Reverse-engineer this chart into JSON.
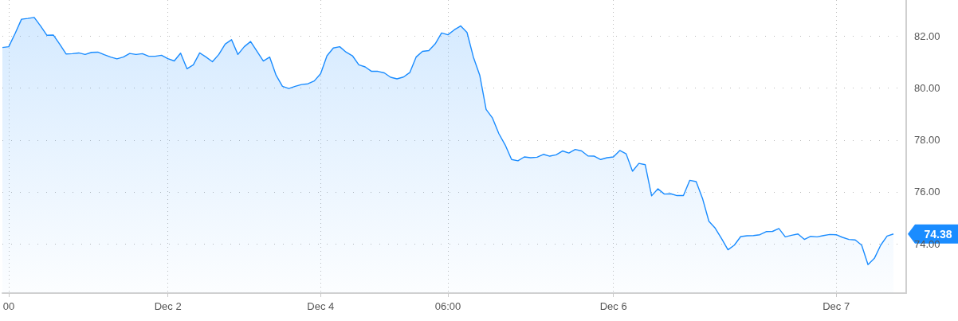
{
  "chart_data": {
    "type": "area",
    "categories": [
      null,
      "00",
      null,
      null,
      null,
      null,
      null,
      null,
      null,
      null,
      null,
      null,
      null,
      null,
      null,
      null,
      null,
      null,
      null,
      null,
      null,
      null,
      null,
      null,
      null,
      null,
      "Dec 2",
      null,
      null,
      null,
      null,
      null,
      null,
      null,
      null,
      null,
      null,
      null,
      null,
      null,
      null,
      null,
      null,
      null,
      null,
      null,
      null,
      null,
      null,
      null,
      "Dec 4",
      null,
      null,
      null,
      null,
      null,
      null,
      null,
      null,
      null,
      null,
      null,
      null,
      null,
      null,
      null,
      null,
      null,
      null,
      null,
      "06:00",
      null,
      null,
      null,
      null,
      null,
      null,
      null,
      null,
      null,
      null,
      null,
      null,
      null,
      null,
      null,
      null,
      null,
      null,
      null,
      null,
      null,
      null,
      null,
      null,
      null,
      "Dec 6",
      null,
      null,
      null,
      null,
      null,
      null,
      null,
      null,
      null,
      null,
      null,
      null,
      null,
      null,
      null,
      null,
      null,
      null,
      null,
      null,
      null,
      null,
      null,
      null,
      null,
      null,
      null,
      null,
      null,
      null,
      null,
      null,
      null,
      null,
      "Dec 7",
      null,
      null,
      null,
      null,
      null,
      null,
      null,
      null,
      null,
      null,
      null
    ],
    "series": [
      {
        "color": "#1a8cff",
        "values": [
          81.57,
          81.6,
          82.11,
          82.66,
          82.69,
          82.73,
          82.4,
          82.04,
          82.05,
          81.7,
          81.32,
          81.33,
          81.36,
          81.3,
          81.38,
          81.39,
          81.29,
          81.2,
          81.13,
          81.2,
          81.34,
          81.3,
          81.33,
          81.23,
          81.23,
          81.27,
          81.14,
          81.05,
          81.35,
          80.75,
          80.9,
          81.36,
          81.2,
          81.02,
          81.3,
          81.7,
          81.87,
          81.3,
          81.6,
          81.8,
          81.42,
          81.05,
          81.2,
          80.5,
          80.07,
          79.99,
          80.07,
          80.14,
          80.17,
          80.28,
          80.56,
          81.25,
          81.55,
          81.6,
          81.39,
          81.25,
          80.9,
          80.82,
          80.65,
          80.65,
          80.59,
          80.42,
          80.36,
          80.43,
          80.6,
          81.2,
          81.42,
          81.45,
          81.71,
          82.13,
          82.06,
          82.25,
          82.4,
          82.15,
          81.2,
          80.5,
          79.18,
          78.85,
          78.25,
          77.81,
          77.25,
          77.2,
          77.35,
          77.32,
          77.34,
          77.45,
          77.38,
          77.43,
          77.58,
          77.5,
          77.64,
          77.58,
          77.39,
          77.38,
          77.25,
          77.32,
          77.35,
          77.6,
          77.47,
          76.8,
          77.1,
          77.05,
          75.85,
          76.12,
          75.92,
          75.93,
          75.86,
          75.86,
          76.45,
          76.4,
          75.75,
          74.87,
          74.6,
          74.2,
          73.77,
          73.95,
          74.28,
          74.31,
          74.32,
          74.35,
          74.47,
          74.48,
          74.59,
          74.27,
          74.33,
          74.38,
          74.17,
          74.29,
          74.27,
          74.32,
          74.36,
          74.35,
          74.25,
          74.17,
          74.15,
          73.95,
          73.2,
          73.44,
          73.95,
          74.3,
          74.38,
          null,
          null
        ]
      }
    ],
    "ylim": [
      72.1,
      83.4
    ],
    "yticks": [
      {
        "value": 74,
        "label": "74.00"
      },
      {
        "value": 76,
        "label": "76.00"
      },
      {
        "value": 78,
        "label": "78.00"
      },
      {
        "value": 80,
        "label": "80.00"
      },
      {
        "value": 82,
        "label": "82.00"
      }
    ],
    "grid": true,
    "annotations": [
      "74.38"
    ]
  }
}
